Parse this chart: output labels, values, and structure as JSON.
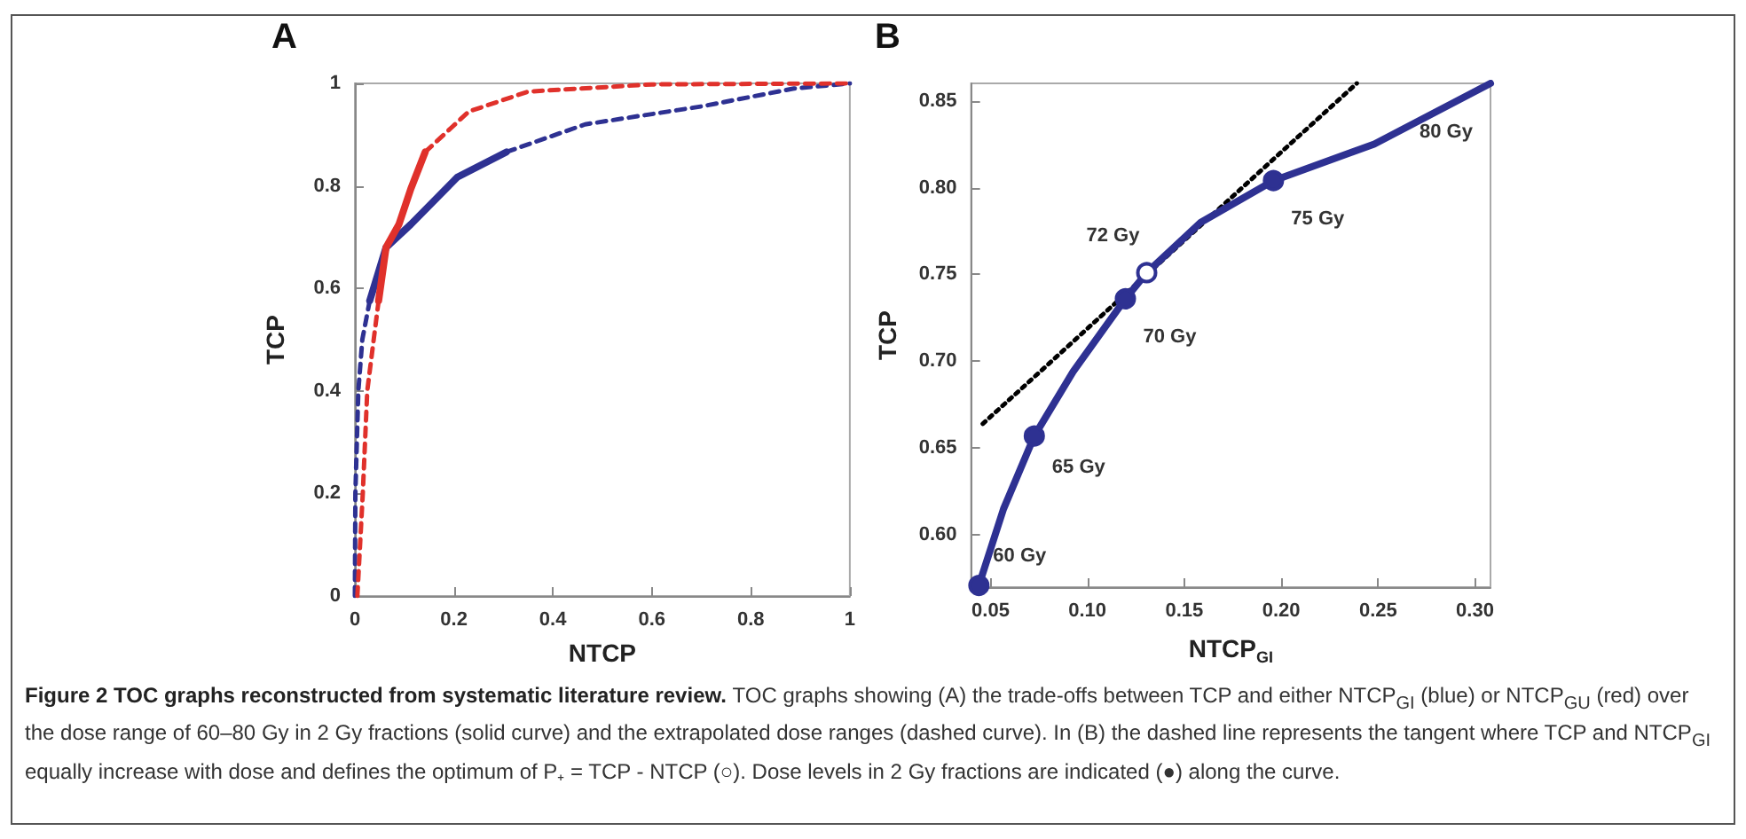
{
  "chart_data": [
    {
      "type": "line",
      "title": "A",
      "xlabel": "NTCP",
      "ylabel": "TCP",
      "xlim": [
        0,
        1
      ],
      "ylim": [
        0,
        1
      ],
      "xticks": [
        0,
        0.2,
        0.4,
        0.6,
        0.8,
        1
      ],
      "yticks": [
        0,
        0.2,
        0.4,
        0.6,
        0.8,
        1
      ],
      "series": [
        {
          "color": "#2e3192",
          "line_style": "dashed",
          "x": [
            0.0,
            0.001,
            0.007,
            0.015,
            0.03
          ],
          "values": [
            0,
            0.2,
            0.4,
            0.5,
            0.576
          ]
        },
        {
          "color": "#2e3192",
          "line_style": "solid",
          "x": [
            0.03,
            0.063,
            0.113,
            0.207,
            0.306
          ],
          "values": [
            0.576,
            0.68,
            0.725,
            0.817,
            0.866
          ]
        },
        {
          "color": "#2e3192",
          "line_style": "dashed",
          "x": [
            0.306,
            0.465,
            0.7,
            0.887,
            1
          ],
          "values": [
            0.866,
            0.92,
            0.955,
            0.99,
            1
          ]
        },
        {
          "color": "#e0312b",
          "line_style": "dashed",
          "x": [
            0.005,
            0.016,
            0.025,
            0.038,
            0.048
          ],
          "values": [
            0,
            0.2,
            0.4,
            0.5,
            0.576
          ]
        },
        {
          "color": "#e0312b",
          "line_style": "solid",
          "x": [
            0.048,
            0.063,
            0.089,
            0.113,
            0.142
          ],
          "values": [
            0.576,
            0.68,
            0.725,
            0.794,
            0.866
          ]
        },
        {
          "color": "#e0312b",
          "line_style": "dashed",
          "x": [
            0.142,
            0.23,
            0.35,
            0.6,
            1
          ],
          "values": [
            0.866,
            0.945,
            0.984,
            0.998,
            1
          ]
        }
      ],
      "annotations": [
        "Figure 2 TOC graphs reconstructed from systematic literature review.",
        "TOC graphs showing (A) the trade-offs between TCP and either NTCP$_{GI}$ (blue) or NTCP$_{GU}$ (red) over the dose range of 60–80 Gy in 2 Gy fractions (solid curve) and the extrapolated dose ranges (dashed curve). In (B) the dashed line represents the tangent where TCP and NTCP$_{GI}$ equally increase with dose and defines the optimum of P₊ = TCP - NTCP (○). Dose levels in 2 Gy fractions are indicated (●) along the curve."
      ]
    },
    {
      "type": "line",
      "title": "B",
      "xlabel": "NTCP$_{GI}$",
      "ylabel": "TCP",
      "xlim": [
        0.04,
        0.308
      ],
      "ylim": [
        0.57,
        0.86
      ],
      "xticks": [
        {
          "value": 0.05,
          "label": "0.05"
        },
        {
          "value": 0.1,
          "label": "0.10"
        },
        {
          "value": 0.15,
          "label": "0.15"
        },
        {
          "value": 0.2,
          "label": "0.20"
        },
        {
          "value": 0.25,
          "label": "0.25"
        },
        {
          "value": 0.3,
          "label": "0.30"
        }
      ],
      "yticks": [
        {
          "value": 0.6,
          "label": "0.60"
        },
        {
          "value": 0.65,
          "label": "0.65"
        },
        {
          "value": 0.7,
          "label": "0.70"
        },
        {
          "value": 0.75,
          "label": "0.75"
        },
        {
          "value": 0.8,
          "label": "0.80"
        },
        {
          "value": 0.85,
          "label": "0.85"
        }
      ],
      "series": [
        {
          "color": "#000000",
          "line_style": "dotted",
          "x": [
            0.046,
            0.239
          ],
          "values": [
            0.664,
            0.86
          ]
        },
        {
          "color": "#2e3192",
          "line_style": "solid",
          "x": [
            0.044,
            0.0567,
            0.0726,
            0.0926,
            0.1196,
            0.1306,
            0.1585,
            0.196,
            0.248,
            0.308
          ],
          "values": [
            0.571,
            0.615,
            0.657,
            0.694,
            0.736,
            0.751,
            0.78,
            0.804,
            0.825,
            0.86
          ]
        },
        {
          "type": "scatter",
          "color": "#2e3192",
          "marker": "circle",
          "x": [
            0.044,
            0.0726,
            0.1196,
            0.196
          ],
          "values": [
            0.571,
            0.657,
            0.736,
            0.804
          ]
        },
        {
          "type": "scatter",
          "color": "#ffffff",
          "marker": "circle",
          "x": [
            0.1306
          ],
          "values": [
            0.751
          ]
        }
      ],
      "annotations": [
        {
          "text": "60 Gy",
          "x": 0.044,
          "y": 0.571
        },
        {
          "text": "65 Gy",
          "x": 0.0726,
          "y": 0.657
        },
        {
          "text": "70 Gy",
          "x": 0.1196,
          "y": 0.736
        },
        {
          "text": "72 Gy",
          "x": 0.1306,
          "y": 0.751
        },
        {
          "text": "75 Gy",
          "x": 0.196,
          "y": 0.804
        },
        {
          "text": "80 Gy",
          "x": 0.308,
          "y": 0.86
        }
      ]
    }
  ]
}
